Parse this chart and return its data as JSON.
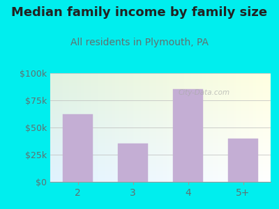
{
  "title": "Median family income by family size",
  "subtitle": "All residents in Plymouth, PA",
  "categories": [
    "2",
    "3",
    "4",
    "5+"
  ],
  "values": [
    62000,
    35000,
    85000,
    40000
  ],
  "bar_color": "#c4aed4",
  "bar_edge_color": "#c4aed4",
  "title_color": "#222222",
  "subtitle_color": "#607070",
  "tick_color": "#607070",
  "bg_color": "#00EEEE",
  "ylim": [
    0,
    100000
  ],
  "yticks": [
    0,
    25000,
    50000,
    75000,
    100000
  ],
  "ytick_labels": [
    "$0",
    "$25k",
    "$50k",
    "$75k",
    "$100k"
  ],
  "watermark": "City-Data.com",
  "title_fontsize": 13,
  "subtitle_fontsize": 10,
  "tick_fontsize": 9
}
